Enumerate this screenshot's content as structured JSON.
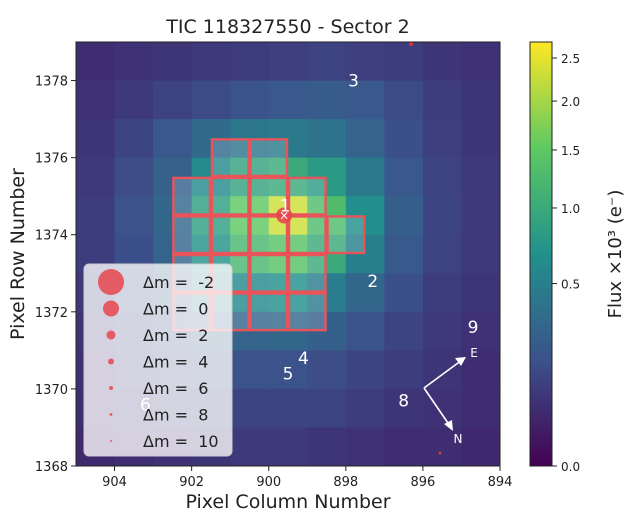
{
  "chart_data": {
    "type": "heatmap",
    "title": "TIC 118327550 - Sector 2",
    "xlabel": "Pixel Column Number",
    "ylabel": "Pixel Row Number",
    "x_range": [
      905,
      894
    ],
    "y_range": [
      1368,
      1379
    ],
    "x_ticks": [
      904,
      902,
      900,
      898,
      896,
      894
    ],
    "y_ticks": [
      1368,
      1370,
      1372,
      1374,
      1376,
      1378
    ],
    "colorbar": {
      "label": "Flux ×10³ (e⁻)",
      "tick_labels": [
        "0.0",
        "0.5",
        "1.0",
        "1.5",
        "2.0",
        "2.5"
      ],
      "tick_values": [
        0.0,
        0.5,
        1.0,
        1.5,
        2.0,
        2.5
      ],
      "colors": [
        "#440154",
        "#3b528b",
        "#21918c",
        "#5ec962",
        "#fde725"
      ]
    },
    "flux_grid_rows_top_to_bottom": [
      [
        0.05,
        0.06,
        0.07,
        0.08,
        0.09,
        0.1,
        0.11,
        0.1,
        0.09,
        0.07,
        0.06
      ],
      [
        0.06,
        0.08,
        0.11,
        0.14,
        0.18,
        0.2,
        0.22,
        0.2,
        0.14,
        0.09,
        0.07
      ],
      [
        0.07,
        0.12,
        0.2,
        0.32,
        0.42,
        0.45,
        0.38,
        0.28,
        0.16,
        0.1,
        0.07
      ],
      [
        0.08,
        0.15,
        0.26,
        0.6,
        0.9,
        1.0,
        0.8,
        0.45,
        0.2,
        0.11,
        0.08
      ],
      [
        0.09,
        0.17,
        0.3,
        0.85,
        1.5,
        2.3,
        1.3,
        0.65,
        0.24,
        0.12,
        0.08
      ],
      [
        0.09,
        0.16,
        0.28,
        0.7,
        1.2,
        1.4,
        1.0,
        0.5,
        0.21,
        0.11,
        0.08
      ],
      [
        0.08,
        0.14,
        0.22,
        0.4,
        0.6,
        0.65,
        0.48,
        0.3,
        0.16,
        0.09,
        0.07
      ],
      [
        0.07,
        0.11,
        0.16,
        0.22,
        0.28,
        0.3,
        0.25,
        0.18,
        0.12,
        0.08,
        0.06
      ],
      [
        0.06,
        0.09,
        0.12,
        0.15,
        0.17,
        0.17,
        0.15,
        0.12,
        0.09,
        0.07,
        0.05
      ],
      [
        0.05,
        0.07,
        0.09,
        0.11,
        0.12,
        0.12,
        0.11,
        0.09,
        0.07,
        0.06,
        0.05
      ],
      [
        0.04,
        0.05,
        0.06,
        0.07,
        0.08,
        0.08,
        0.07,
        0.06,
        0.05,
        0.05,
        0.04
      ]
    ],
    "aperture_pixels_col_row": [
      [
        901,
        1376
      ],
      [
        900,
        1376
      ],
      [
        902,
        1375
      ],
      [
        901,
        1375
      ],
      [
        900,
        1375
      ],
      [
        899,
        1375
      ],
      [
        902,
        1374
      ],
      [
        901,
        1374
      ],
      [
        900,
        1374
      ],
      [
        899,
        1374
      ],
      [
        898,
        1374
      ],
      [
        902,
        1373
      ],
      [
        901,
        1373
      ],
      [
        900,
        1373
      ],
      [
        899,
        1373
      ],
      [
        902,
        1372
      ],
      [
        901,
        1372
      ],
      [
        900,
        1372
      ],
      [
        899,
        1372
      ]
    ],
    "target": {
      "label": "1",
      "x": 899.6,
      "y": 1374.5
    },
    "stars": [
      {
        "label": "2",
        "x": 897.3,
        "y": 1372.8
      },
      {
        "label": "3",
        "x": 897.8,
        "y": 1378.0
      },
      {
        "label": "4",
        "x": 899.1,
        "y": 1370.8
      },
      {
        "label": "5",
        "x": 899.5,
        "y": 1370.4
      },
      {
        "label": "6",
        "x": 903.2,
        "y": 1369.6
      },
      {
        "label": "8",
        "x": 896.5,
        "y": 1369.7
      },
      {
        "label": "9",
        "x": 894.7,
        "y": 1371.6
      }
    ],
    "compass": {
      "east_label": "E",
      "north_label": "N"
    },
    "legend": {
      "placement": "lower-left",
      "entries": [
        {
          "label": "Δm =  -2",
          "dm": -2
        },
        {
          "label": "Δm =  0",
          "dm": 0
        },
        {
          "label": "Δm =  2",
          "dm": 2
        },
        {
          "label": "Δm =  4",
          "dm": 4
        },
        {
          "label": "Δm =  6",
          "dm": 6
        },
        {
          "label": "Δm =  8",
          "dm": 8
        },
        {
          "label": "Δm =  10",
          "dm": 10
        }
      ]
    }
  }
}
